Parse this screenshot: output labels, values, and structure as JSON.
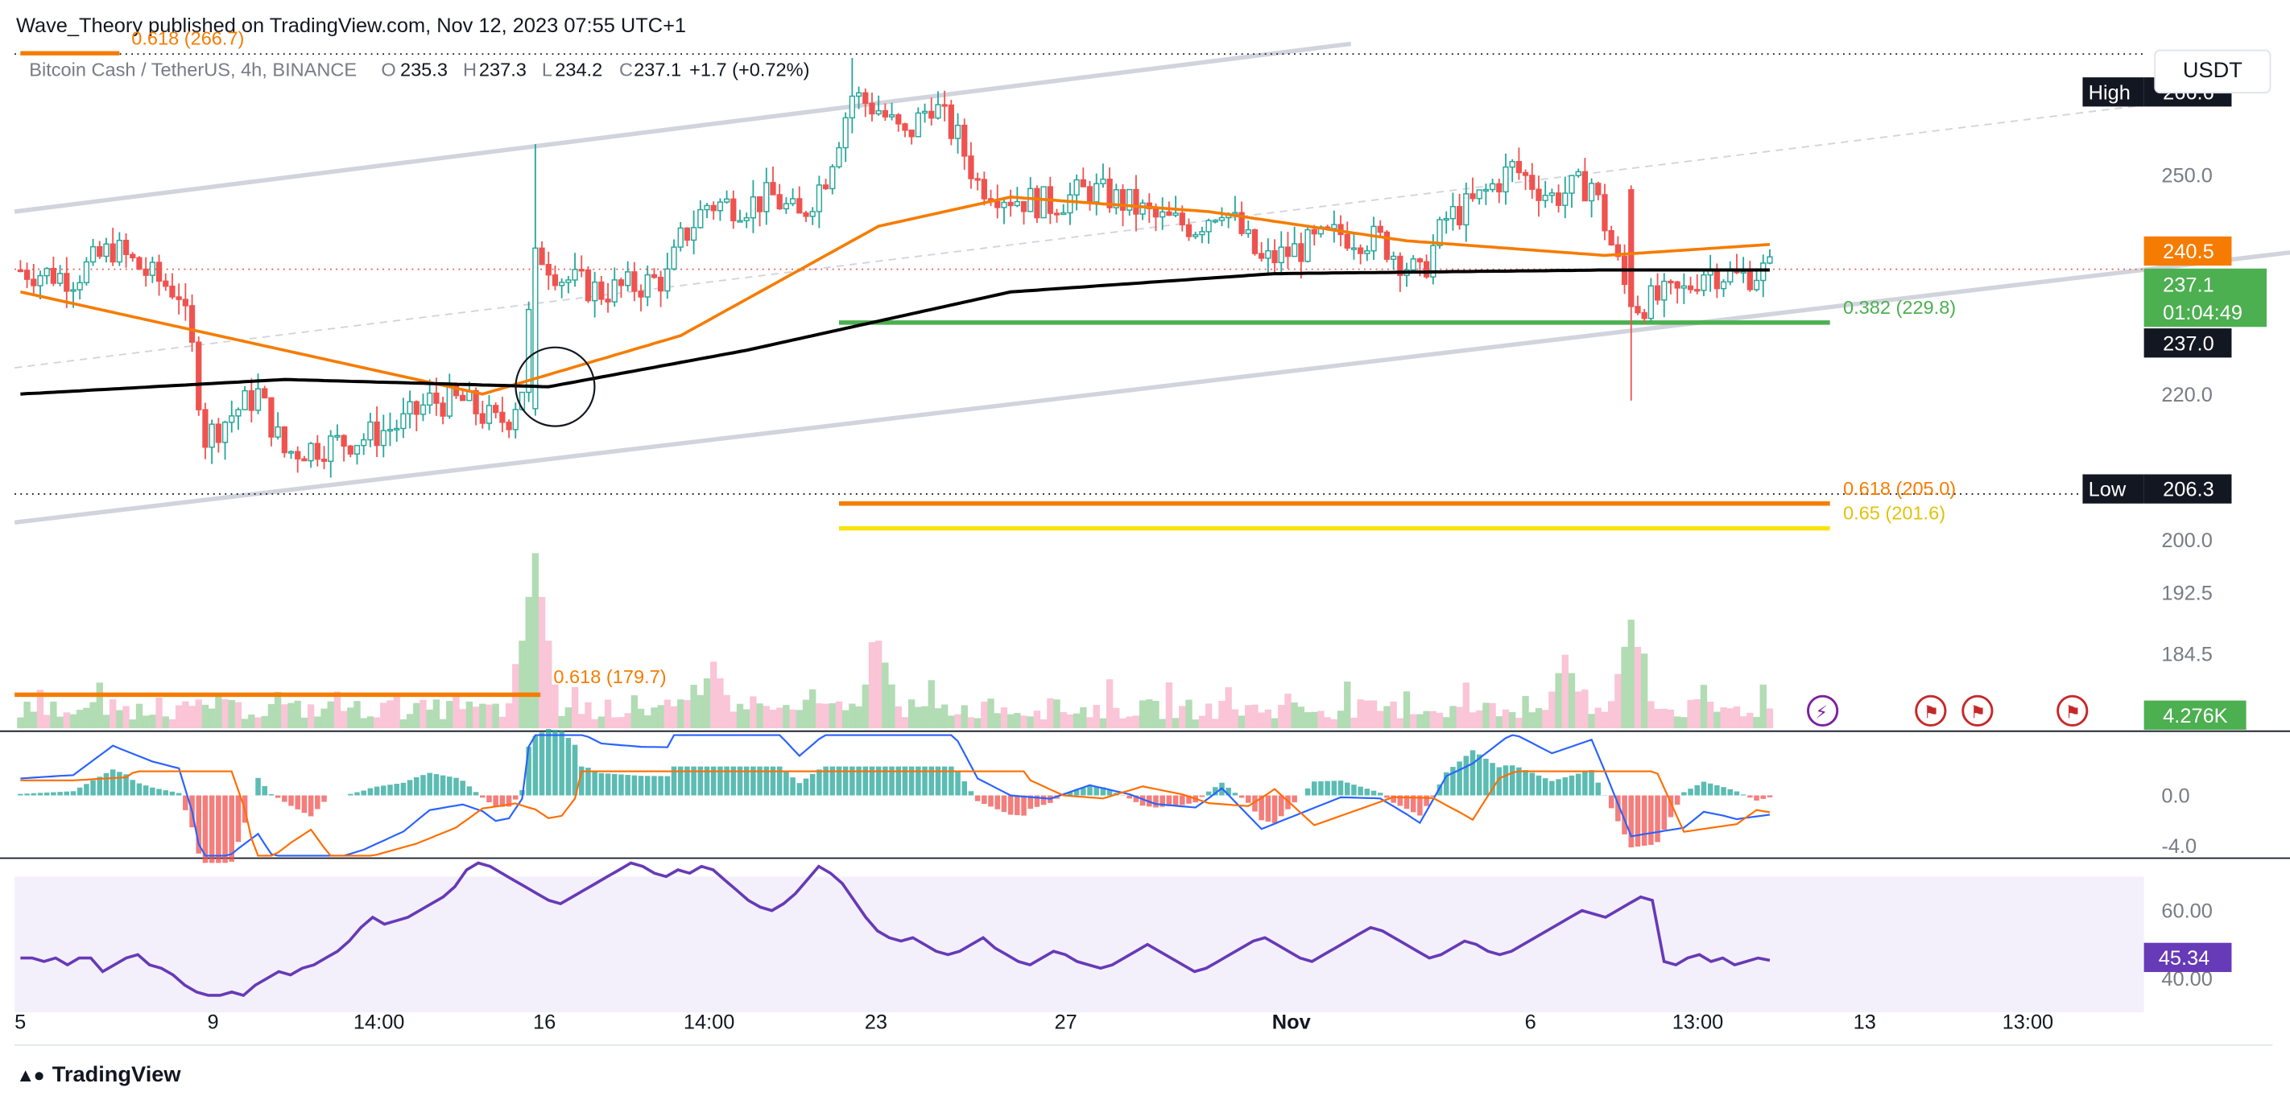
{
  "header": {
    "published_by": "Wave_Theory published on TradingView.com, Nov 12, 2023 07:55 UTC+1"
  },
  "footer": {
    "brand": "TradingView",
    "logo_icon": "tradingview-logo-icon"
  },
  "currency_button": "USDT",
  "legend": {
    "symbol": "Bitcoin Cash / TetherUS, 4h, BINANCE",
    "o_label": "O",
    "o_value": "235.3",
    "h_label": "H",
    "h_value": "237.3",
    "l_label": "L",
    "l_value": "234.2",
    "c_label": "C",
    "c_value": "237.1",
    "change": "+1.7 (+0.72%)"
  },
  "colors": {
    "up": "#26a69a",
    "down": "#ef5350",
    "ema_fast": "#f57c00",
    "ema_slow": "#000000",
    "channel": "#d1d4dc",
    "support": "#4caf50",
    "fib_orange": "#f57c00",
    "fib_yellow": "#fbe20c",
    "macd": "#2962ff",
    "signal": "#ff6d00",
    "rsi": "#673ab7"
  },
  "chart_data": [
    {
      "type": "line",
      "name": "price-pane",
      "ylim": [
        197,
        268
      ],
      "y_ticks": [
        200.0,
        220.0,
        250.0
      ],
      "scale_labels": {
        "high_label": "High",
        "high_value": "266.6",
        "ema_value": "240.5",
        "last_price": "237.1",
        "countdown": "01:04:49",
        "ema200_value": "237.0",
        "low_label": "Low",
        "low_value": "206.3"
      },
      "x_ticks": [
        "5",
        "9",
        "14:00",
        "16",
        "14:00",
        "23",
        "27",
        "Nov",
        "6",
        "13:00",
        "13",
        "13:00"
      ],
      "candles_count": 176,
      "close_path": [
        [
          0,
          237
        ],
        [
          8,
          236
        ],
        [
          14,
          240
        ],
        [
          20,
          236
        ],
        [
          24,
          234
        ],
        [
          26,
          226
        ],
        [
          28,
          214
        ],
        [
          33,
          218
        ],
        [
          36,
          220
        ],
        [
          40,
          212
        ],
        [
          46,
          213
        ],
        [
          52,
          214
        ],
        [
          58,
          216
        ],
        [
          62,
          219
        ],
        [
          67,
          219
        ],
        [
          72,
          216
        ],
        [
          74,
          217
        ],
        [
          76,
          221
        ],
        [
          78,
          240
        ],
        [
          82,
          236
        ],
        [
          88,
          234
        ],
        [
          94,
          235
        ],
        [
          98,
          236
        ],
        [
          100,
          241
        ],
        [
          104,
          246
        ],
        [
          110,
          246
        ],
        [
          114,
          247
        ],
        [
          118,
          244
        ],
        [
          122,
          250
        ],
        [
          126,
          261
        ],
        [
          130,
          259
        ],
        [
          134,
          255
        ],
        [
          138,
          260
        ],
        [
          142,
          255
        ],
        [
          145,
          249
        ],
        [
          150,
          247
        ],
        [
          156,
          246
        ],
        [
          162,
          248
        ],
        [
          168,
          246
        ],
        [
          172,
          244
        ],
        [
          178,
          243
        ],
        [
          182,
          246
        ],
        [
          188,
          238
        ],
        [
          194,
          240
        ],
        [
          200,
          242
        ],
        [
          206,
          241
        ],
        [
          212,
          236
        ],
        [
          216,
          244
        ],
        [
          220,
          246
        ],
        [
          226,
          251
        ],
        [
          232,
          247
        ],
        [
          238,
          249
        ],
        [
          244,
          232
        ],
        [
          248,
          233
        ],
        [
          252,
          234
        ],
        [
          255,
          237
        ],
        [
          258,
          236.5
        ],
        [
          260,
          236
        ],
        [
          265,
          237.1
        ]
      ],
      "ema_fast_path": [
        [
          0,
          234
        ],
        [
          30,
          228
        ],
        [
          70,
          220
        ],
        [
          100,
          228
        ],
        [
          130,
          243
        ],
        [
          150,
          247
        ],
        [
          180,
          245
        ],
        [
          210,
          241
        ],
        [
          240,
          239
        ],
        [
          265,
          240.5
        ]
      ],
      "ema_slow_path": [
        [
          0,
          220
        ],
        [
          40,
          222
        ],
        [
          80,
          221
        ],
        [
          110,
          226
        ],
        [
          150,
          234
        ],
        [
          190,
          236.5
        ],
        [
          240,
          237
        ],
        [
          265,
          237
        ]
      ],
      "levels": [
        {
          "label": "0.382 (229.8)",
          "value": 229.8,
          "from": 124,
          "to": 265,
          "color": "#4caf50"
        },
        {
          "label": "0.618 (205.0)",
          "value": 205.0,
          "from": 124,
          "to": 265,
          "color": "#f57c00"
        },
        {
          "label": "0.65 (201.6)",
          "value": 201.6,
          "from": 124,
          "to": 265,
          "color": "#fbe20c"
        },
        {
          "label": "0.618 (266.7)",
          "value": 266.7,
          "from": 0,
          "to": 15,
          "color": "#f57c00"
        }
      ]
    },
    {
      "type": "area",
      "name": "volume-pane",
      "y_ticks": [
        184.5,
        192.5
      ],
      "fib_label": "0.618 (179.7)",
      "last_volume": "4.276K",
      "peaks": [
        [
          78,
          1.0
        ],
        [
          130,
          0.5
        ],
        [
          244,
          0.62
        ],
        [
          234,
          0.42
        ],
        [
          105,
          0.38
        ]
      ]
    },
    {
      "type": "line",
      "name": "macd-pane",
      "ylim": [
        -5,
        5
      ],
      "y_ticks": [
        0.0,
        -4.0
      ]
    },
    {
      "type": "line",
      "name": "rsi-pane",
      "ylim": [
        35,
        75
      ],
      "y_ticks": [
        60.0,
        40.0
      ],
      "last_value": "45.34",
      "values": [
        46,
        46,
        45,
        46,
        44,
        46,
        46,
        42,
        44,
        46,
        47,
        44,
        43,
        41,
        38,
        36,
        35,
        35,
        36,
        35,
        38,
        40,
        42,
        41,
        43,
        44,
        46,
        48,
        51,
        55,
        58,
        56,
        57,
        58,
        60,
        62,
        64,
        67,
        72,
        74,
        73,
        71,
        69,
        67,
        65,
        63,
        62,
        64,
        66,
        68,
        70,
        72,
        74,
        73,
        71,
        70,
        72,
        71,
        73,
        72,
        69,
        66,
        63,
        61,
        60,
        62,
        65,
        69,
        73,
        71,
        68,
        63,
        58,
        54,
        52,
        51,
        52,
        50,
        48,
        47,
        48,
        50,
        52,
        49,
        47,
        45,
        44,
        46,
        48,
        47,
        45,
        44,
        43,
        44,
        46,
        48,
        50,
        48,
        46,
        44,
        42,
        43,
        45,
        47,
        49,
        51,
        52,
        50,
        48,
        46,
        45,
        47,
        49,
        51,
        53,
        55,
        54,
        52,
        50,
        48,
        46,
        47,
        49,
        51,
        50,
        48,
        47,
        48,
        50,
        52,
        54,
        56,
        58,
        60,
        59,
        58,
        60,
        62,
        64,
        63,
        45,
        44,
        46,
        47,
        45,
        46,
        44,
        45,
        46,
        45.34
      ]
    }
  ],
  "icons": [
    "lightning-event-icon",
    "us-flag-event-icon",
    "us-flag-event-icon",
    "us-flag-event-icon"
  ],
  "pane_colors": {
    "rsi_band": "#f3f0fb"
  }
}
